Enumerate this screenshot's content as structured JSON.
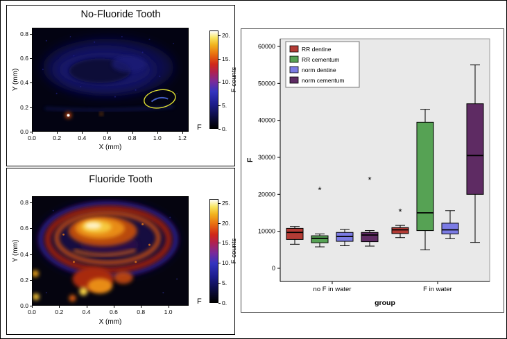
{
  "chart_data": [
    {
      "type": "heatmap",
      "panel": "top-left",
      "title": "No-Fluoride Tooth",
      "xlabel": "X (mm)",
      "ylabel": "Y (mm)",
      "corner_label": "F",
      "x_ticks": {
        "values": [
          0,
          0.2,
          0.4,
          0.6,
          0.8,
          1,
          1.2
        ],
        "labels": [
          "0.0",
          "0.2",
          "0.4",
          "0.6",
          "0.8",
          "1.0",
          "1.2"
        ]
      },
      "y_ticks": {
        "values": [
          0,
          0.2,
          0.4,
          0.6,
          0.8
        ],
        "labels": [
          "0.0",
          "0.2",
          "0.4",
          "0.6",
          "0.8"
        ]
      },
      "x_range": [
        0,
        1.25
      ],
      "y_range": [
        0,
        0.85
      ],
      "colorbar": {
        "label": "F counts",
        "range": [
          0,
          21
        ],
        "tick_values": [
          0,
          5,
          10,
          15,
          20
        ],
        "tick_labels": [
          "0.",
          "5.",
          "10.",
          "15.",
          "20."
        ]
      },
      "annotation": "yellow ellipse highlighting faint fluoride feature near x=1.05 mm, y=0.25 mm",
      "description": "dark map with faint blue dentine ellipse, very low F counts"
    },
    {
      "type": "heatmap",
      "panel": "bottom-left",
      "title": "Fluoride Tooth",
      "xlabel": "X (mm)",
      "ylabel": "Y (mm)",
      "corner_label": "F",
      "x_ticks": {
        "values": [
          0,
          0.2,
          0.4,
          0.6,
          0.8,
          1
        ],
        "labels": [
          "0.0",
          "0.2",
          "0.4",
          "0.6",
          "0.8",
          "1.0"
        ]
      },
      "y_ticks": {
        "values": [
          0,
          0.2,
          0.4,
          0.6,
          0.8
        ],
        "labels": [
          "0.0",
          "0.2",
          "0.4",
          "0.6",
          "0.8"
        ]
      },
      "x_range": [
        0,
        1.15
      ],
      "y_range": [
        0,
        0.85
      ],
      "colorbar": {
        "label": "F counts",
        "range": [
          0,
          26
        ],
        "tick_values": [
          0,
          5,
          10,
          15,
          20,
          25
        ],
        "tick_labels": [
          "0.",
          "5.",
          "10.",
          "15.",
          "20.",
          "25."
        ]
      },
      "description": "bright orange-yellow enamel ring and root regions, high F counts"
    },
    {
      "type": "boxplot",
      "panel": "right",
      "xlabel": "group",
      "ylabel": "F",
      "categories": [
        "no F in water",
        "F in water"
      ],
      "y_ticks": [
        0,
        10000,
        20000,
        30000,
        40000,
        50000,
        60000
      ],
      "ylim": [
        0,
        63000
      ],
      "legend_position": "top-left",
      "series": [
        {
          "name": "RR dentine",
          "color": "#b33b35",
          "boxes": [
            {
              "low": 6500,
              "q1": 7800,
              "median": 9700,
              "q3": 10800,
              "high": 11300
            },
            {
              "low": 8300,
              "q1": 9400,
              "median": 10400,
              "q3": 11000,
              "high": 11600
            }
          ],
          "outliers": [
            {
              "group": 1,
              "value": 15600
            }
          ]
        },
        {
          "name": "RR cementum",
          "color": "#56a254",
          "boxes": [
            {
              "low": 5800,
              "q1": 6900,
              "median": 8100,
              "q3": 8800,
              "high": 9300
            },
            {
              "low": 5000,
              "q1": 10200,
              "median": 15000,
              "q3": 39500,
              "high": 43000
            }
          ],
          "outliers": [
            {
              "group": 0,
              "value": 21500
            }
          ]
        },
        {
          "name": "norm dentine",
          "color": "#7b7be4",
          "boxes": [
            {
              "low": 6100,
              "q1": 7300,
              "median": 8600,
              "q3": 9700,
              "high": 10500
            },
            {
              "low": 8000,
              "q1": 9300,
              "median": 10400,
              "q3": 12200,
              "high": 15600
            }
          ],
          "outliers": []
        },
        {
          "name": "norm cementum",
          "color": "#5e2b63",
          "boxes": [
            {
              "low": 6000,
              "q1": 7200,
              "median": 9000,
              "q3": 9700,
              "high": 10200
            },
            {
              "low": 7000,
              "q1": 20000,
              "median": 30500,
              "q3": 44500,
              "high": 55000
            }
          ],
          "outliers": [
            {
              "group": 0,
              "value": 24200
            }
          ]
        }
      ]
    }
  ]
}
